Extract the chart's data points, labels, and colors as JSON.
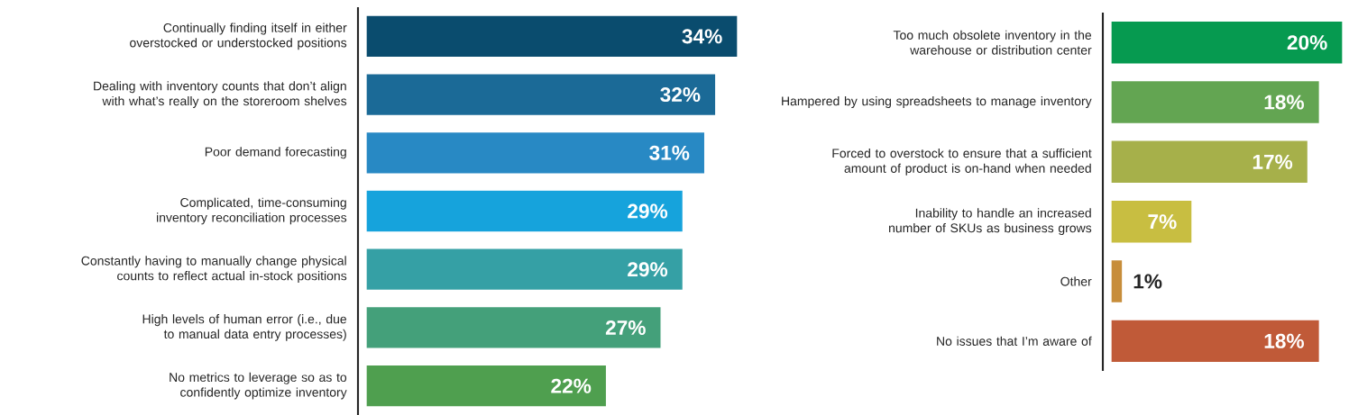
{
  "chart_data": [
    {
      "type": "bar",
      "orientation": "horizontal",
      "categories": [
        "Continually finding itself in either overstocked or understocked positions",
        "Dealing with inventory counts that don’t align with what’s really on the storeroom shelves",
        "Poor demand forecasting",
        "Complicated, time-consuming inventory reconciliation processes",
        "Constantly having to manually change physical counts to reflect actual in-stock positions",
        "High levels of human error (i.e., due to manual data entry processes)",
        "No metrics to leverage so as to confidently optimize inventory"
      ],
      "values": [
        34,
        32,
        31,
        29,
        29,
        27,
        22
      ],
      "value_labels": [
        "34%",
        "32%",
        "31%",
        "29%",
        "29%",
        "27%",
        "22%"
      ],
      "colors": [
        "#0a4c6e",
        "#1b6a97",
        "#2889c4",
        "#16a3dc",
        "#35a0a5",
        "#44a07a",
        "#4f9f4f"
      ]
    },
    {
      "type": "bar",
      "orientation": "horizontal",
      "categories": [
        "Too much obsolete inventory in the warehouse or distribution center",
        "Hampered by using spreadsheets to manage inventory",
        "Forced to overstock to ensure that a sufficient amount of product is on-hand when needed",
        "Inability to handle an increased number of SKUs as business grows",
        "Other",
        "No issues that I’m aware of"
      ],
      "values": [
        20,
        18,
        17,
        7,
        1,
        18
      ],
      "value_labels": [
        "20%",
        "18%",
        "17%",
        "7%",
        "1%",
        "18%"
      ],
      "colors": [
        "#069a50",
        "#63a552",
        "#a6b04a",
        "#c8be41",
        "#c78d3a",
        "#c05a38"
      ]
    }
  ]
}
